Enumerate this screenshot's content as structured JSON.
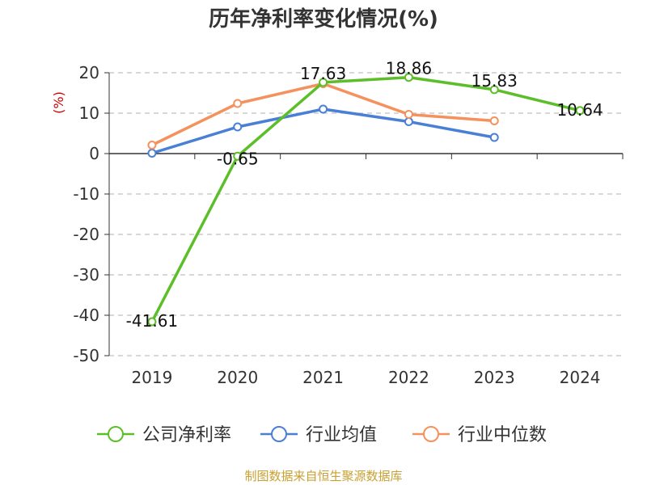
{
  "chart_data": {
    "type": "line",
    "title": "历年净利率变化情况(%)",
    "ylabel": "(%)",
    "categories": [
      "2019",
      "2020",
      "2021",
      "2022",
      "2023",
      "2024"
    ],
    "ylim": [
      -50,
      20
    ],
    "yticks": [
      20,
      10,
      0,
      -10,
      -20,
      -30,
      -40,
      -50
    ],
    "grid": true,
    "legend_position": "bottom",
    "series": [
      {
        "name": "公司净利率",
        "color": "#5cbf2a",
        "values": [
          -41.61,
          -0.65,
          17.63,
          18.86,
          15.83,
          10.64
        ],
        "labels": [
          "-41.61",
          "-0.65",
          "17.63",
          "18.86",
          "15.83",
          "10.64"
        ]
      },
      {
        "name": "行业均值",
        "color": "#4a7fd6",
        "values": [
          0.1,
          6.6,
          11.0,
          7.9,
          4.0,
          null
        ]
      },
      {
        "name": "行业中位数",
        "color": "#f5915c",
        "values": [
          2.1,
          12.4,
          17.3,
          9.7,
          8.1,
          null
        ]
      }
    ]
  },
  "footer": "制图数据来自恒生聚源数据库"
}
